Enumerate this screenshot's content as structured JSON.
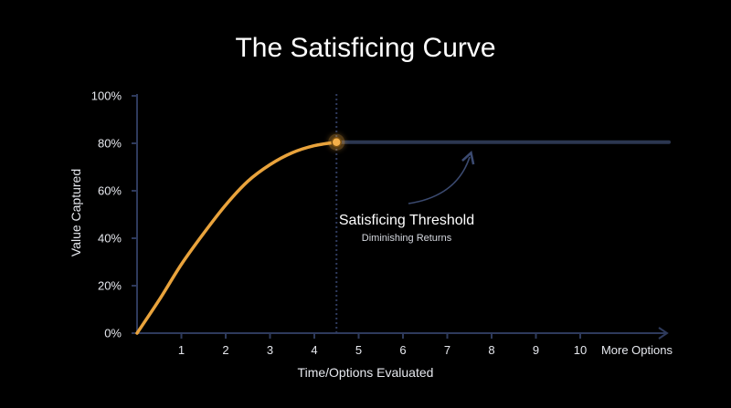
{
  "chart_data": {
    "type": "line",
    "title": "The Satisficing Curve",
    "xlabel": "Time/Options Evaluated",
    "ylabel": "Value Captured",
    "x_ticks": [
      "1",
      "2",
      "3",
      "4",
      "5",
      "6",
      "7",
      "8",
      "9",
      "10"
    ],
    "x_end_label": "More Options",
    "y_ticks": [
      "0%",
      "20%",
      "40%",
      "60%",
      "80%",
      "100%"
    ],
    "xlim": [
      0,
      12
    ],
    "ylim": [
      0,
      100
    ],
    "grid": false,
    "series": [
      {
        "color": "#e9a33c",
        "x": [
          0,
          0.5,
          1,
          1.5,
          2,
          2.5,
          3,
          3.5,
          4,
          4.5
        ],
        "y": [
          0,
          14,
          29,
          42,
          54,
          64,
          71,
          76,
          79,
          80.5
        ]
      }
    ],
    "plateau": {
      "color": "#2b3650",
      "x": [
        4.5,
        12
      ],
      "y": 80.5
    },
    "threshold": {
      "x": 4.5,
      "y": 80.5,
      "color": "#2f3b5e"
    },
    "annotation": {
      "title": "Satisficing Threshold",
      "subtitle": "Diminishing Returns"
    }
  }
}
